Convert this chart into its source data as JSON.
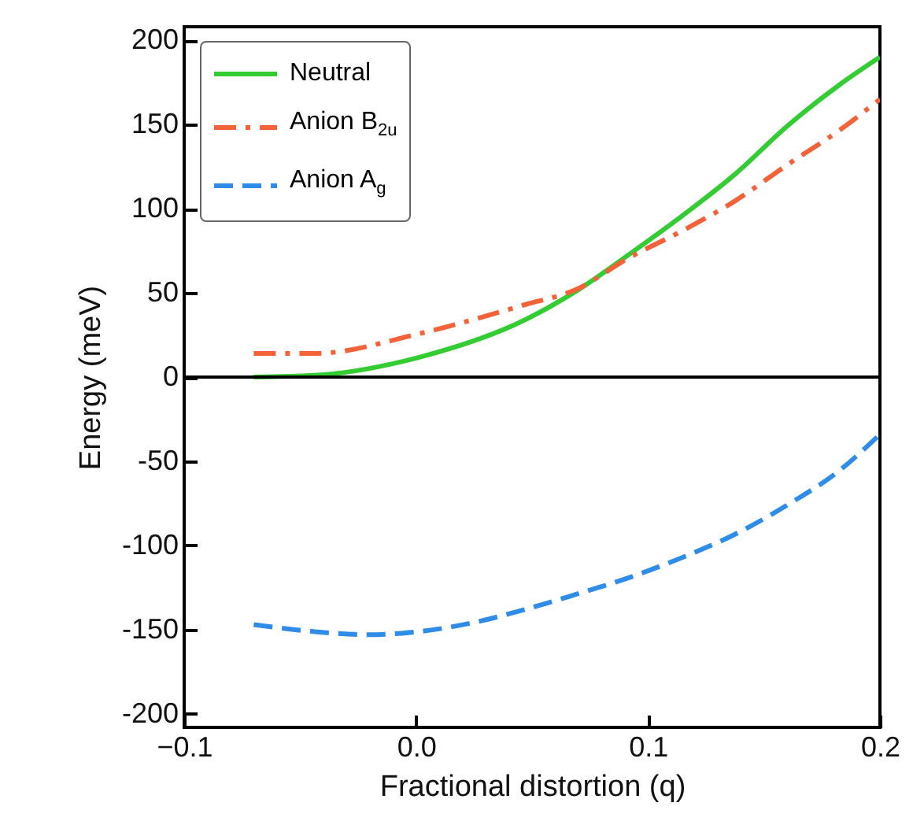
{
  "chart_data": {
    "type": "line",
    "xlabel": "Fractional distortion (q)",
    "ylabel": "Energy (meV)",
    "xlim": [
      -0.1,
      0.2
    ],
    "xticks": [
      {
        "value": -0.1,
        "label": "−0.1"
      },
      {
        "value": 0.0,
        "label": "0.0"
      },
      {
        "value": 0.1,
        "label": "0.1"
      },
      {
        "value": 0.2,
        "label": "0.2"
      }
    ],
    "ylim": [
      -208,
      208
    ],
    "yticks": [
      -200,
      -150,
      -100,
      -50,
      0,
      50,
      100,
      150,
      200
    ],
    "legend": "top left",
    "grid": false,
    "ref_lines": [
      {
        "axis": "y",
        "value": 0,
        "color": "#000000"
      }
    ],
    "series": [
      {
        "name": "Neutral",
        "color": "#33cc33",
        "line_style": "solid",
        "x": [
          -0.07,
          -0.044,
          0.002,
          0.047,
          0.069,
          0.092,
          0.115,
          0.138,
          0.16,
          0.183,
          0.2
        ],
        "values": [
          0,
          1,
          12,
          34,
          51,
          73,
          96,
          121,
          149,
          174,
          190
        ]
      },
      {
        "name": "Anion B$_{2u}$",
        "color": "#f4623a",
        "line_style": "dashdot",
        "x": [
          -0.07,
          -0.044,
          0.002,
          0.047,
          0.069,
          0.092,
          0.115,
          0.138,
          0.16,
          0.183,
          0.2
        ],
        "values": [
          14,
          14,
          26,
          43,
          52,
          71,
          87,
          105,
          126,
          147,
          165
        ]
      },
      {
        "name": "Anion A$_{g}$",
        "color": "#2f8ce8",
        "line_style": "dashed",
        "x": [
          -0.07,
          -0.045,
          -0.021,
          0.002,
          0.024,
          0.047,
          0.069,
          0.092,
          0.115,
          0.138,
          0.16,
          0.183,
          0.2
        ],
        "values": [
          -147,
          -151,
          -153,
          -151,
          -146,
          -138,
          -129,
          -119,
          -107,
          -93,
          -76,
          -55,
          -34
        ]
      }
    ]
  }
}
